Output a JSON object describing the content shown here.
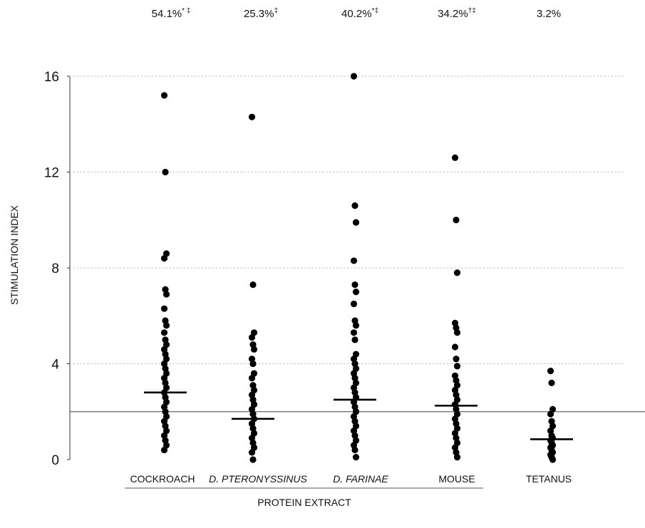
{
  "chart_data": {
    "type": "scatter",
    "ylabel": "STIMULATION INDEX",
    "xlabel": "PROTEIN EXTRACT",
    "ylim": [
      0,
      16
    ],
    "yticks": [
      0,
      4,
      8,
      12,
      16
    ],
    "threshold": 2,
    "grid": true,
    "categories": [
      {
        "label": "COCKROACH",
        "italic": false
      },
      {
        "label": "D. PTERONYSSINUS",
        "italic": true
      },
      {
        "label": "D. FARINAE",
        "italic": true
      },
      {
        "label": "MOUSE",
        "italic": false
      },
      {
        "label": "TETANUS",
        "italic": false
      }
    ],
    "percent_labels": [
      "54.1%",
      "25.3%",
      "40.2%",
      "34.2%",
      "3.2%"
    ],
    "percent_marks": [
      "* ‡",
      "‡",
      "*‡",
      "†‡",
      ""
    ],
    "means": [
      2.8,
      1.7,
      2.5,
      2.25,
      0.85
    ],
    "points": [
      [
        15.2,
        12.0,
        8.6,
        8.4,
        7.1,
        6.9,
        6.3,
        5.8,
        5.6,
        5.3,
        5.0,
        4.8,
        4.6,
        4.4,
        4.2,
        4.0,
        3.8,
        3.6,
        3.4,
        3.2,
        3.0,
        2.8,
        2.6,
        2.4,
        2.2,
        2.0,
        1.8,
        1.6,
        1.4,
        1.2,
        1.0,
        0.8,
        0.6,
        0.4
      ],
      [
        14.3,
        7.3,
        5.3,
        5.1,
        4.8,
        4.6,
        4.2,
        4.0,
        3.6,
        3.4,
        3.1,
        2.9,
        2.7,
        2.5,
        2.3,
        2.1,
        1.9,
        1.7,
        1.5,
        1.3,
        1.1,
        0.9,
        0.7,
        0.5,
        0.3,
        0.0
      ],
      [
        16.0,
        10.6,
        9.9,
        8.3,
        7.3,
        7.0,
        6.5,
        5.8,
        5.6,
        5.3,
        5.0,
        4.4,
        4.2,
        4.0,
        3.8,
        3.6,
        3.4,
        3.2,
        3.0,
        2.8,
        2.6,
        2.4,
        2.2,
        2.0,
        1.8,
        1.6,
        1.4,
        1.2,
        1.0,
        0.8,
        0.6,
        0.4,
        0.1
      ],
      [
        12.6,
        10.0,
        7.8,
        5.7,
        5.5,
        5.3,
        4.7,
        4.2,
        3.9,
        3.5,
        3.3,
        3.1,
        2.9,
        2.7,
        2.5,
        2.3,
        2.1,
        1.9,
        1.7,
        1.5,
        1.3,
        1.1,
        0.9,
        0.7,
        0.5,
        0.3,
        0.1
      ],
      [
        3.7,
        3.2,
        2.1,
        1.9,
        1.6,
        1.4,
        1.2,
        1.0,
        0.9,
        0.8,
        0.7,
        0.6,
        0.5,
        0.4,
        0.3,
        0.2,
        0.1,
        0.0
      ]
    ]
  }
}
